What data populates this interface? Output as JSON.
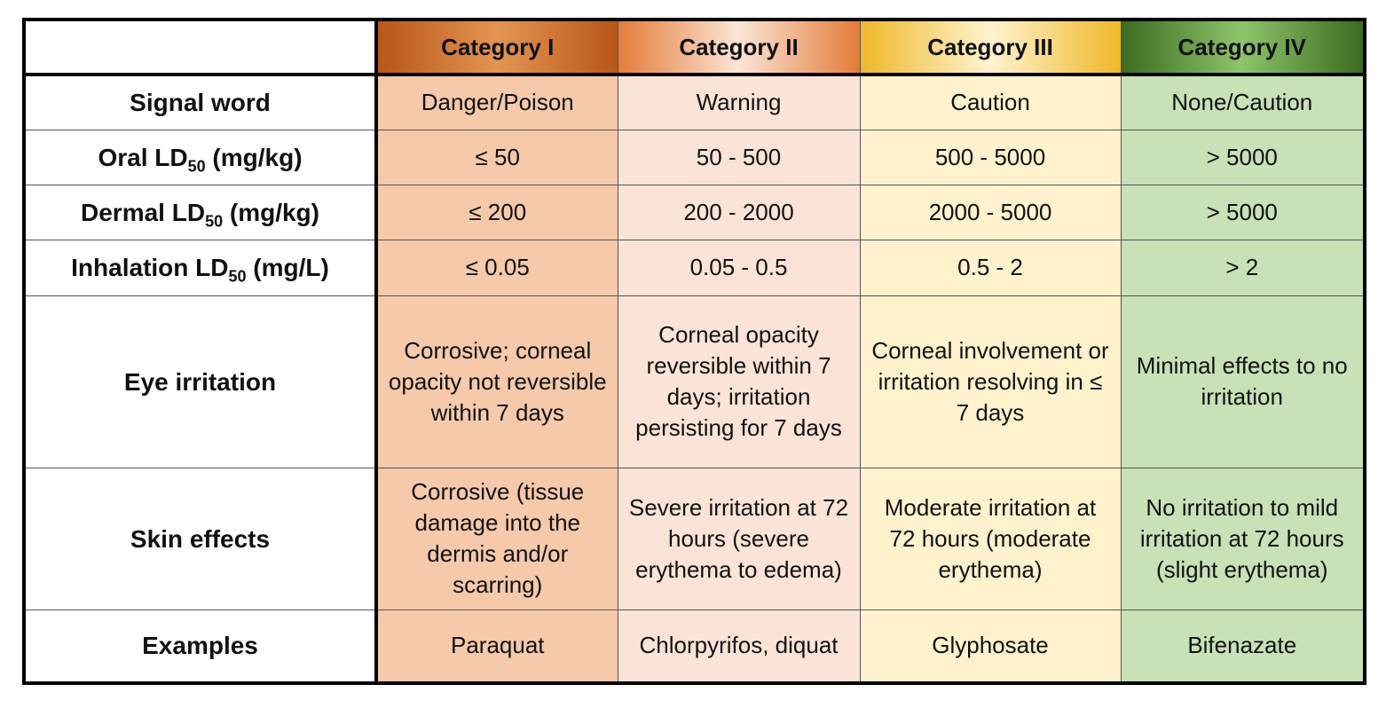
{
  "table": {
    "headers": [
      "Category I",
      "Category II",
      "Category III",
      "Category IV"
    ],
    "rows": [
      {
        "label": [
          "Signal word"
        ],
        "cells": [
          "Danger/Poison",
          "Warning",
          "Caution",
          "None/Caution"
        ]
      },
      {
        "label": [
          "Oral LD",
          "50",
          " (mg/kg)"
        ],
        "cells": [
          "≤ 50",
          "50 - 500",
          "500 - 5000",
          "> 5000"
        ]
      },
      {
        "label": [
          "Dermal LD",
          "50",
          " (mg/kg)"
        ],
        "cells": [
          "≤ 200",
          "200 - 2000",
          "2000 - 5000",
          "> 5000"
        ]
      },
      {
        "label": [
          "Inhalation LD",
          "50",
          " (mg/L)"
        ],
        "cells": [
          "≤ 0.05",
          "0.05 - 0.5",
          "0.5 - 2",
          "> 2"
        ]
      },
      {
        "label": [
          "Eye irritation"
        ],
        "cells": [
          "Corrosive; corneal opacity not reversible within 7 days",
          "Corneal opacity reversible within 7 days; irritation persisting for 7 days",
          "Corneal involvement or irritation resolving in ≤ 7 days",
          "Minimal effects to no irritation"
        ]
      },
      {
        "label": [
          "Skin effects"
        ],
        "cells": [
          "Corrosive (tissue damage into the dermis and/or scarring)",
          "Severe irritation at 72 hours (severe erythema to edema)",
          "Moderate irritation at 72 hours (moderate erythema)",
          "No irritation to mild irritation at 72 hours (slight erythema)"
        ]
      },
      {
        "label": [
          "Examples"
        ],
        "cells": [
          "Paraquat",
          "Chlorpyrifos, diquat",
          "Glyphosate",
          "Bifenazate"
        ]
      }
    ]
  }
}
